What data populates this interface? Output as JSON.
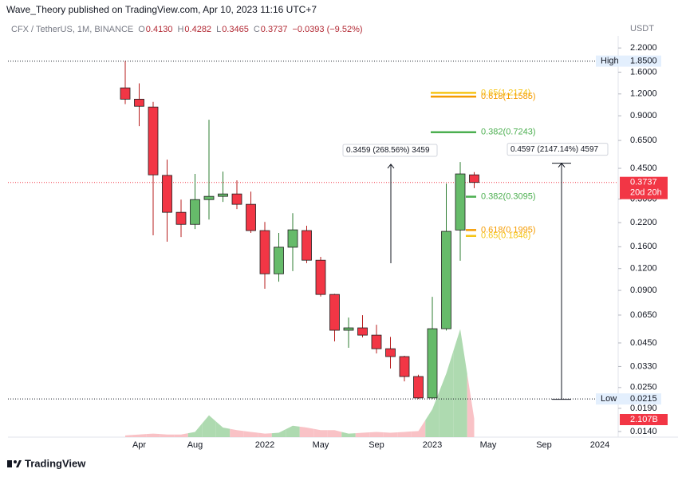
{
  "chart_data": {
    "type": "candlestick",
    "published": "Wave_Theory published on TradingView.com, Apr 10, 2023 11:16 UTC+7",
    "symbol": "CFX / TetherUS, 1M, BINANCE",
    "ohlc_legend": [
      {
        "key": "O",
        "value": "0.4130"
      },
      {
        "key": "H",
        "value": "0.4282"
      },
      {
        "key": "L",
        "value": "0.3465"
      },
      {
        "key": "C",
        "value": "0.3737"
      }
    ],
    "change": "−0.0393 (−9.52%)",
    "currency": "USDT",
    "brand": "TradingView",
    "log_scale": true,
    "up_color": "#66bb6a",
    "down_color": "#f23645",
    "categories": [
      null,
      "Apr",
      null,
      null,
      null,
      "Aug",
      null,
      null,
      null,
      null,
      "2022",
      null,
      null,
      null,
      "May",
      null,
      null,
      null,
      "Sep",
      null,
      null,
      null,
      "2023",
      null,
      null,
      null,
      "May",
      null,
      null,
      null,
      "Sep",
      null,
      null,
      null,
      "2024"
    ],
    "open": [
      1.3,
      1.12,
      1.01,
      0.41,
      0.252,
      0.215,
      0.298,
      0.311,
      0.321,
      0.28,
      0.198,
      0.112,
      0.159,
      0.198,
      0.134,
      0.0853,
      0.0532,
      0.0549,
      0.0499,
      0.0417,
      0.0376,
      0.0289,
      0.0218,
      0.0543,
      0.1995,
      0.413,
      null,
      null,
      null,
      null,
      null,
      null,
      null,
      null,
      null
    ],
    "high": [
      1.85,
      1.38,
      1.08,
      0.505,
      0.298,
      0.418,
      0.854,
      0.431,
      0.384,
      0.331,
      0.222,
      0.192,
      0.249,
      0.211,
      0.14,
      0.086,
      0.0629,
      0.0649,
      0.0572,
      0.0487,
      0.038,
      0.0296,
      0.0827,
      0.368,
      0.489,
      0.4282,
      null,
      null,
      null,
      null,
      null,
      null,
      null,
      null,
      null
    ],
    "low": [
      1.05,
      0.785,
      0.186,
      0.171,
      0.182,
      0.202,
      0.229,
      0.289,
      0.263,
      0.192,
      0.092,
      0.101,
      0.116,
      0.129,
      0.083,
      0.0459,
      0.0422,
      0.0484,
      0.0392,
      0.0321,
      0.0271,
      0.0215,
      0.0215,
      0.053,
      0.133,
      0.3465,
      null,
      null,
      null,
      null,
      null,
      null,
      null,
      null,
      null
    ],
    "close": [
      1.12,
      1.02,
      0.413,
      0.252,
      0.215,
      0.298,
      0.311,
      0.321,
      0.28,
      0.198,
      0.112,
      0.159,
      0.2,
      0.134,
      0.0853,
      0.0532,
      0.0549,
      0.0499,
      0.0417,
      0.0376,
      0.0289,
      0.0218,
      0.0543,
      0.196,
      0.418,
      0.3737,
      null,
      null,
      null,
      null,
      null,
      null,
      null,
      null,
      null
    ],
    "ylim": [
      0.013,
      2.58
    ],
    "yticks": [
      {
        "value": 2.2,
        "label": "2.2000"
      },
      {
        "value": 1.6,
        "label": "1.6000"
      },
      {
        "value": 1.2,
        "label": "1.2000"
      },
      {
        "value": 0.9,
        "label": "0.9000"
      },
      {
        "value": 0.65,
        "label": "0.6500"
      },
      {
        "value": 0.45,
        "label": "0.4500"
      },
      {
        "value": 0.3,
        "label": "0.3000"
      },
      {
        "value": 0.22,
        "label": "0.2200"
      },
      {
        "value": 0.16,
        "label": "0.1600"
      },
      {
        "value": 0.12,
        "label": "0.1200"
      },
      {
        "value": 0.09,
        "label": "0.0900"
      },
      {
        "value": 0.065,
        "label": "0.0650"
      },
      {
        "value": 0.045,
        "label": "0.0450"
      },
      {
        "value": 0.033,
        "label": "0.0330"
      },
      {
        "value": 0.025,
        "label": "0.0250"
      },
      {
        "value": 0.019,
        "label": "0.0190"
      },
      {
        "value": 0.014,
        "label": "0.0140"
      }
    ],
    "volume": {
      "values": [
        0.2,
        0.3,
        0.4,
        0.3,
        0.3,
        0.6,
        2.5,
        1.1,
        0.8,
        0.6,
        0.4,
        0.5,
        1.3,
        1.1,
        0.8,
        0.8,
        0.4,
        0.5,
        0.6,
        0.5,
        0.6,
        0.7,
        3.2,
        7.3,
        12.4,
        2.107,
        null,
        null,
        null,
        null,
        null,
        null,
        null,
        null,
        null
      ],
      "value_labels": [
        null,
        null,
        null,
        null,
        null,
        null,
        null,
        null,
        null,
        null,
        null,
        null,
        null,
        null,
        null,
        null,
        null,
        null,
        null,
        null,
        null,
        null,
        null,
        null,
        null,
        "2.107B",
        null,
        null,
        null,
        null,
        null,
        null,
        null,
        null,
        null
      ],
      "ylim": [
        0,
        14
      ],
      "up_color": "#a5d6a7",
      "down_color": "#f8bbc0"
    },
    "price_marks": [
      {
        "name": "High",
        "value": 1.85,
        "label": "1.8500"
      },
      {
        "name": "Low",
        "value": 0.0215,
        "label": "0.0215"
      }
    ],
    "last_price": {
      "value": 0.3737,
      "label": "0.3737",
      "countdown": "20d 20h"
    },
    "fib_levels": [
      {
        "label": "0.65(1.2174)",
        "value": 1.2174,
        "color": "#f5c518",
        "group": "upper"
      },
      {
        "label": "0.618(1.1585)",
        "value": 1.1585,
        "color": "#f59b00",
        "group": "upper"
      },
      {
        "label": "0.382(0.7243)",
        "value": 0.7243,
        "color": "#4caf50",
        "group": "upper"
      },
      {
        "label": "0.382(0.3095)",
        "value": 0.3095,
        "color": "#4caf50",
        "group": "lower"
      },
      {
        "label": "0.618(0.1995)",
        "value": 0.1995,
        "color": "#f59b00",
        "group": "lower"
      },
      {
        "label": "0.65(0.1846)",
        "value": 0.1846,
        "color": "#f5c518",
        "group": "lower"
      }
    ],
    "measures": [
      {
        "label": "0.3459 (268.56%) 3459",
        "from": 0.1288,
        "to": 0.4747
      },
      {
        "label": "0.4597 (2147.14%) 4597",
        "from": 0.02141,
        "to": 0.4811
      }
    ]
  }
}
